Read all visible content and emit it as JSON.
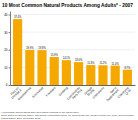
{
  "chart_data": {
    "type": "bar",
    "title": "10 Most Common Natural Products Among Adults* - 2007",
    "categories": [
      "Fish oil/\nOmega 3",
      "Glucosamine",
      "Echinacea",
      "Flaxseed",
      "Ginseng",
      "Combination\nHerb Pills",
      "Ginkgo\nBiloba",
      "Chondroitin",
      "Garlic\nSupplement",
      "Coenzyme\nQ-10"
    ],
    "values": [
      37.4,
      19.9,
      19.8,
      15.9,
      14.1,
      13.0,
      11.3,
      11.2,
      11.0,
      8.7
    ],
    "value_labels": [
      "37.4%",
      "19.9%",
      "19.8%",
      "15.9%",
      "14.1%",
      "13.0%",
      "11.3%",
      "11.2%",
      "11.0%",
      "8.7%"
    ],
    "data_labels": true,
    "color": "#F5A800",
    "ylim": [
      0,
      42
    ],
    "yticks": [
      0,
      10,
      20,
      30,
      40
    ],
    "grid": true,
    "annotations": [
      "* Percentage among adults who used natural products in the last 30 days.",
      "Source: Barnes PM, Bloom B, Nahin R. CDC National Health Statistics Report #12. Complementary and Alternative Medicine Use Among Adults and Children:",
      "United States, 2007. December 2008."
    ]
  }
}
